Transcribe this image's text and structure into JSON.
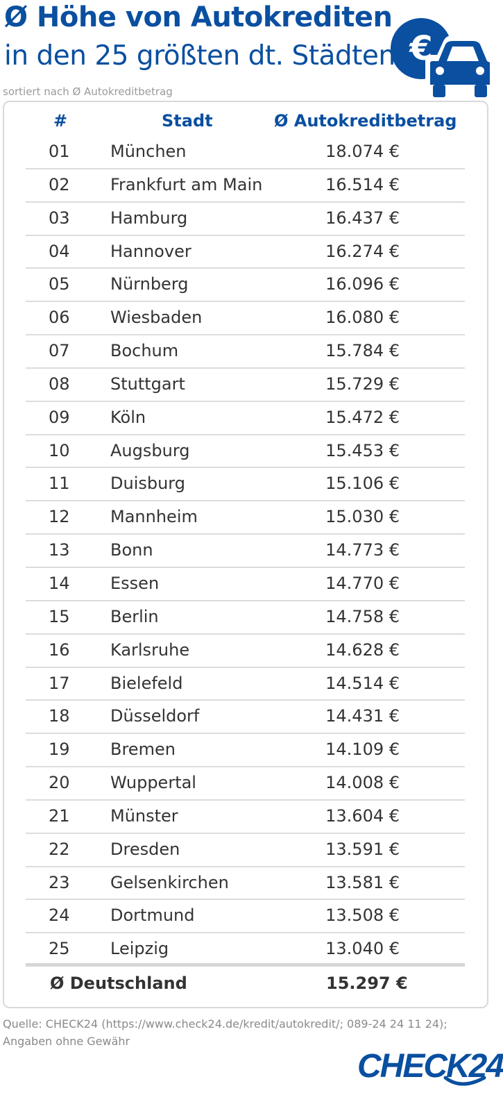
{
  "header": {
    "title_line1": "Ø Höhe von Autokrediten",
    "title_line2": "in den 25 größten dt. Städten",
    "subtitle": "sortiert nach Ø Autokreditbetrag",
    "icon_euro": "€"
  },
  "table": {
    "col_rank": "#",
    "col_city": "Stadt",
    "col_amount": "Ø Autokreditbetrag",
    "rows": [
      {
        "rank": "01",
        "city": "München",
        "amount": "18.074 €"
      },
      {
        "rank": "02",
        "city": "Frankfurt am Main",
        "amount": "16.514 €"
      },
      {
        "rank": "03",
        "city": "Hamburg",
        "amount": "16.437 €"
      },
      {
        "rank": "04",
        "city": "Hannover",
        "amount": "16.274 €"
      },
      {
        "rank": "05",
        "city": "Nürnberg",
        "amount": "16.096 €"
      },
      {
        "rank": "06",
        "city": "Wiesbaden",
        "amount": "16.080 €"
      },
      {
        "rank": "07",
        "city": "Bochum",
        "amount": "15.784 €"
      },
      {
        "rank": "08",
        "city": "Stuttgart",
        "amount": "15.729 €"
      },
      {
        "rank": "09",
        "city": "Köln",
        "amount": "15.472 €"
      },
      {
        "rank": "10",
        "city": "Augsburg",
        "amount": "15.453 €"
      },
      {
        "rank": "11",
        "city": "Duisburg",
        "amount": "15.106 €"
      },
      {
        "rank": "12",
        "city": "Mannheim",
        "amount": "15.030 €"
      },
      {
        "rank": "13",
        "city": "Bonn",
        "amount": "14.773 €"
      },
      {
        "rank": "14",
        "city": "Essen",
        "amount": "14.770 €"
      },
      {
        "rank": "15",
        "city": "Berlin",
        "amount": "14.758 €"
      },
      {
        "rank": "16",
        "city": "Karlsruhe",
        "amount": "14.628 €"
      },
      {
        "rank": "17",
        "city": "Bielefeld",
        "amount": "14.514 €"
      },
      {
        "rank": "18",
        "city": "Düsseldorf",
        "amount": "14.431 €"
      },
      {
        "rank": "19",
        "city": "Bremen",
        "amount": "14.109 €"
      },
      {
        "rank": "20",
        "city": "Wuppertal",
        "amount": "14.008 €"
      },
      {
        "rank": "21",
        "city": "Münster",
        "amount": "13.604 €"
      },
      {
        "rank": "22",
        "city": "Dresden",
        "amount": "13.591 €"
      },
      {
        "rank": "23",
        "city": "Gelsenkirchen",
        "amount": "13.581 €"
      },
      {
        "rank": "24",
        "city": "Dortmund",
        "amount": "13.508 €"
      },
      {
        "rank": "25",
        "city": "Leipzig",
        "amount": "13.040 €"
      }
    ],
    "total_label": "Ø Deutschland",
    "total_value": "15.297 €"
  },
  "footer": {
    "source_line1": "Quelle: CHECK24 (https://www.check24.de/kredit/autokredit/; 089-24 24 11 24);",
    "source_line2": "Angaben ohne Gewähr",
    "brand": "CHECK24"
  },
  "colors": {
    "brand_blue": "#0a4fa0",
    "row_divider": "#dcdcdc",
    "text": "#333333"
  },
  "chart_data": {
    "type": "table",
    "title": "Ø Höhe von Autokrediten in den 25 größten dt. Städten",
    "subtitle": "sortiert nach Ø Autokreditbetrag",
    "columns": [
      "#",
      "Stadt",
      "Ø Autokreditbetrag"
    ],
    "categories": [
      "München",
      "Frankfurt am Main",
      "Hamburg",
      "Hannover",
      "Nürnberg",
      "Wiesbaden",
      "Bochum",
      "Stuttgart",
      "Köln",
      "Augsburg",
      "Duisburg",
      "Mannheim",
      "Bonn",
      "Essen",
      "Berlin",
      "Karlsruhe",
      "Bielefeld",
      "Düsseldorf",
      "Bremen",
      "Wuppertal",
      "Münster",
      "Dresden",
      "Gelsenkirchen",
      "Dortmund",
      "Leipzig"
    ],
    "values": [
      18074,
      16514,
      16437,
      16274,
      16096,
      16080,
      15784,
      15729,
      15472,
      15453,
      15106,
      15030,
      14773,
      14770,
      14758,
      14628,
      14514,
      14431,
      14109,
      14008,
      13604,
      13591,
      13581,
      13508,
      13040
    ],
    "unit": "€",
    "average_label": "Ø Deutschland",
    "average_value": 15297
  }
}
